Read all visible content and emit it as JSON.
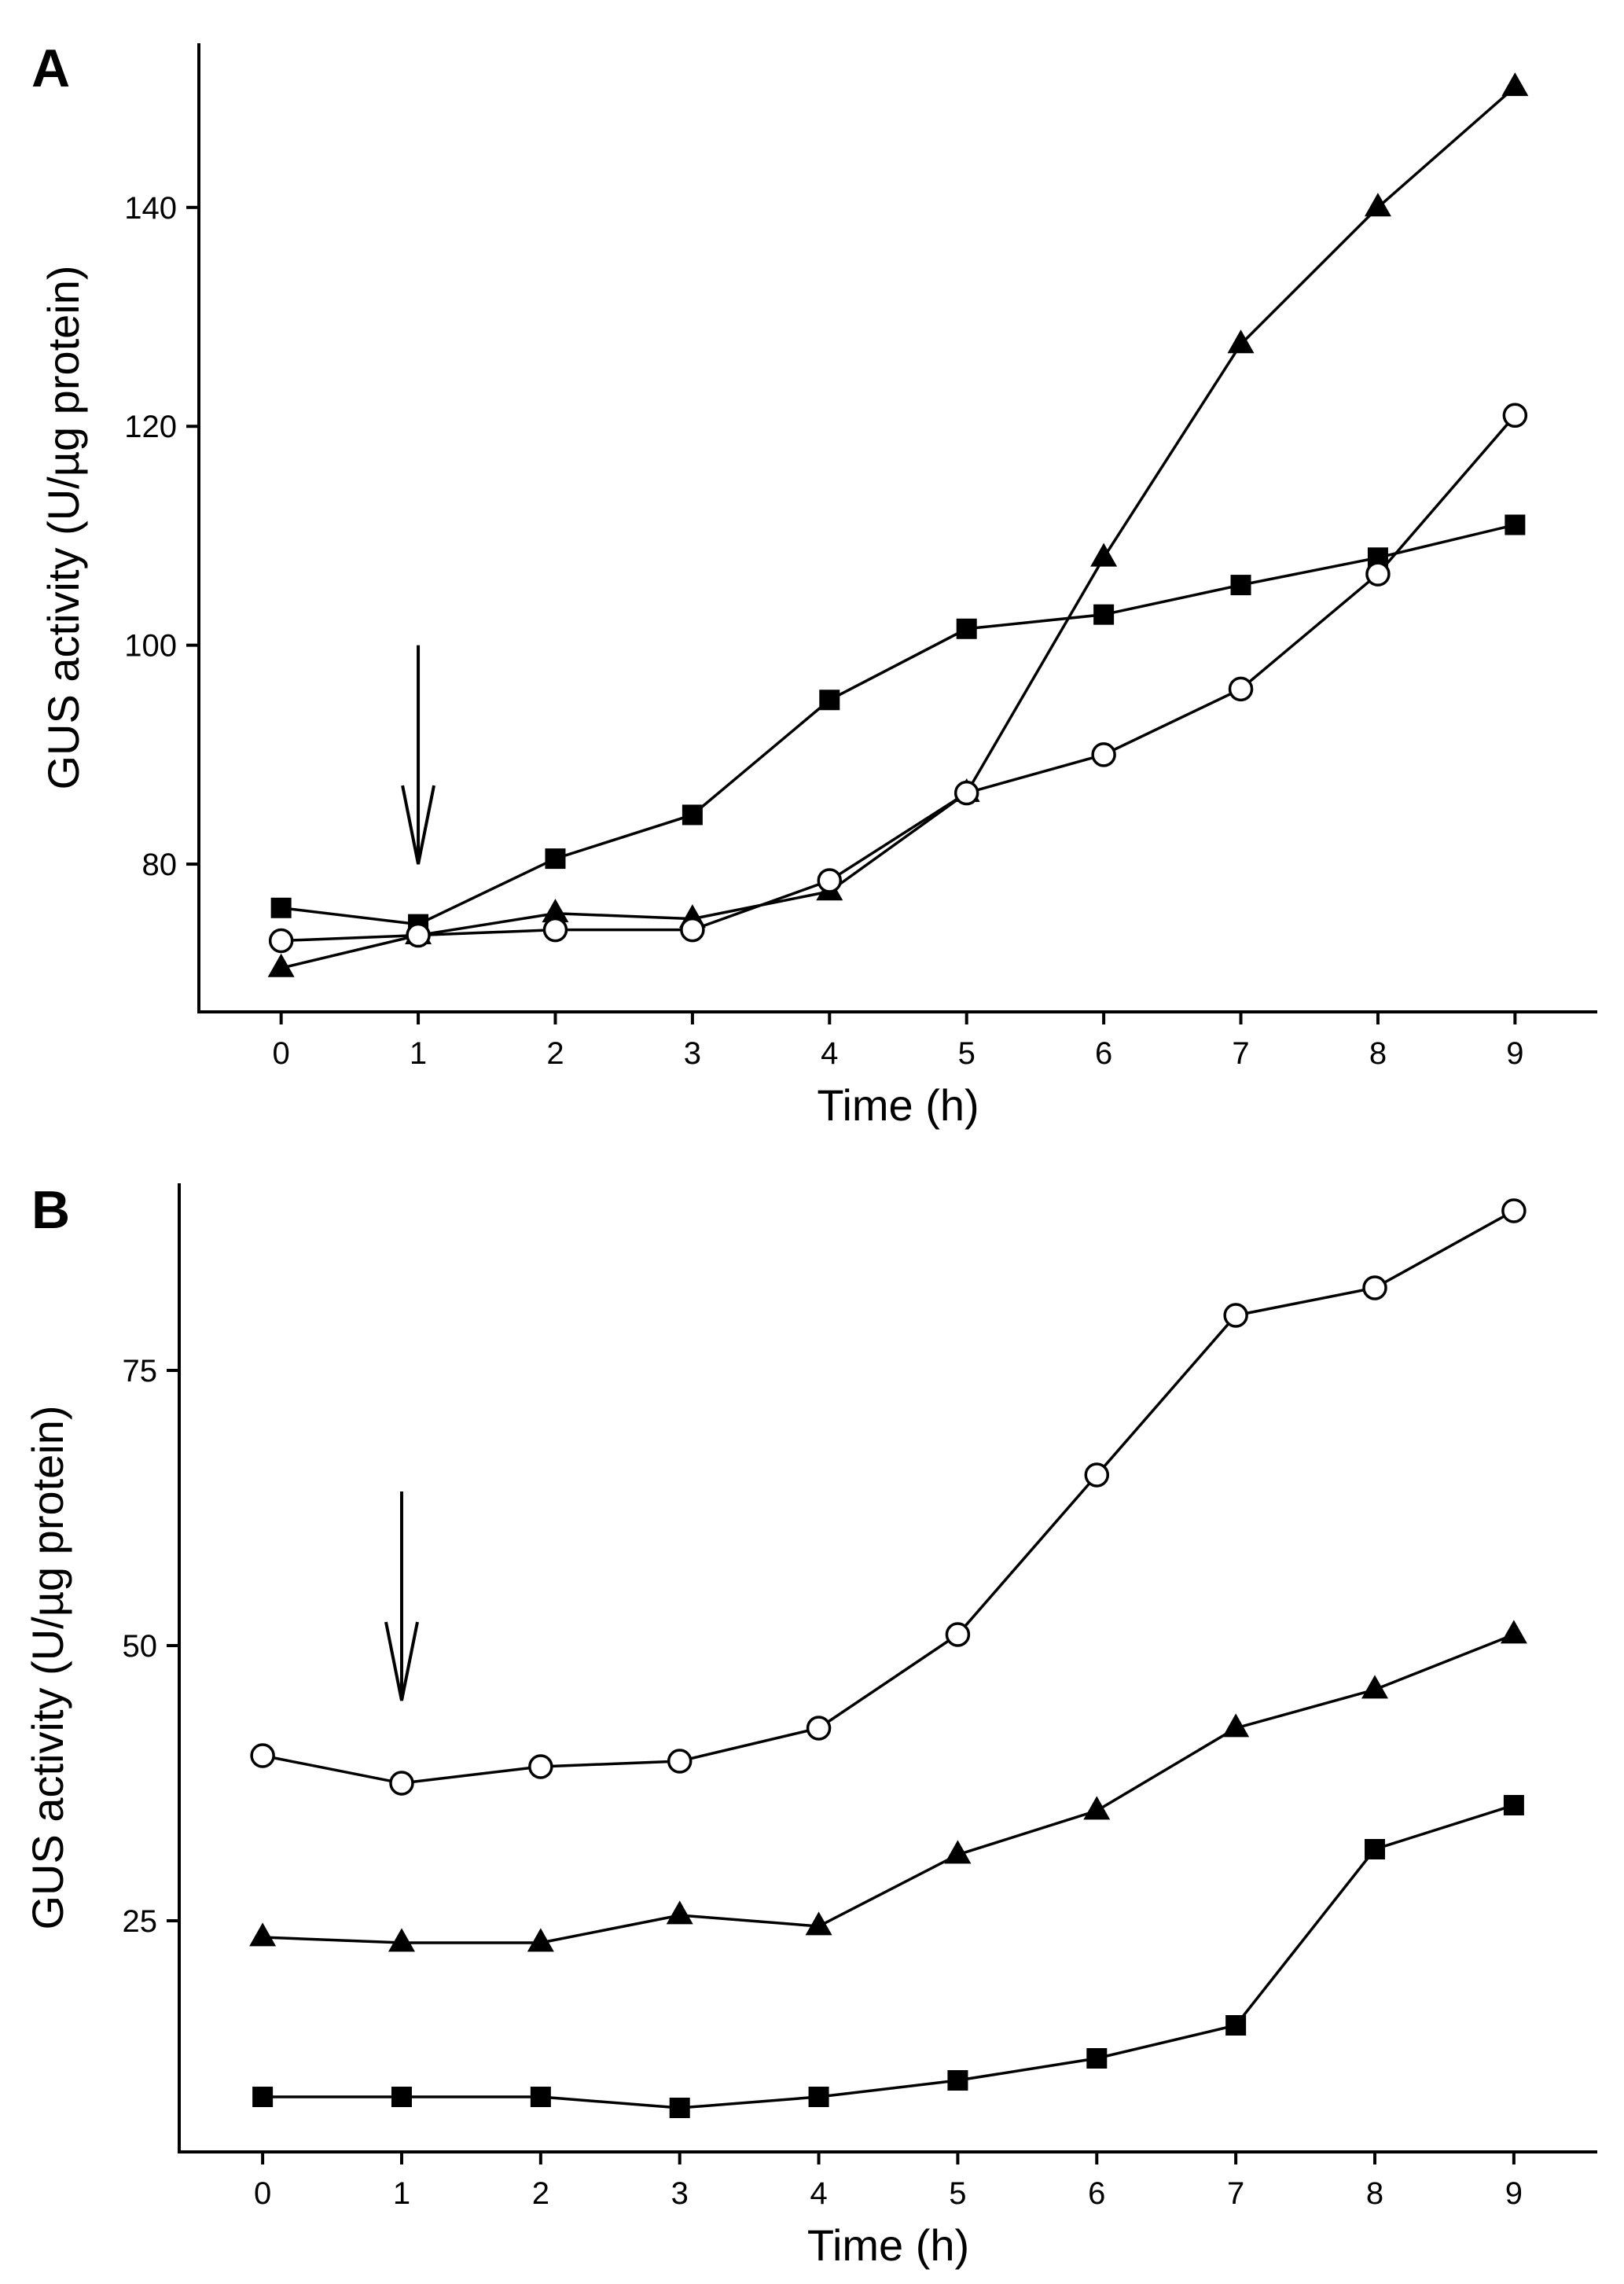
{
  "chart_data": [
    {
      "type": "line",
      "panel_label": "A",
      "xlabel": "Time (h)",
      "ylabel": "GUS activity (U/µg protein)",
      "x": [
        0,
        1,
        2,
        3,
        4,
        5,
        6,
        7,
        8,
        9
      ],
      "xlim": [
        -0.6,
        9.6
      ],
      "ylim": [
        66.5,
        155
      ],
      "yticks": [
        80,
        100,
        120,
        140
      ],
      "grid": false,
      "arrow_at_x": 1,
      "arrow_y_range": [
        80,
        100
      ],
      "series": [
        {
          "name": "filled-square",
          "marker": "square",
          "values": [
            76,
            74.5,
            80.5,
            84.5,
            95,
            101.5,
            102.8,
            105.5,
            108,
            111
          ]
        },
        {
          "name": "filled-triangle",
          "marker": "triangle",
          "values": [
            70.5,
            73.5,
            75.5,
            75,
            77.5,
            86.5,
            108,
            127.5,
            140,
            151
          ]
        },
        {
          "name": "open-circle",
          "marker": "circle",
          "values": [
            73,
            73.5,
            74,
            74,
            78.5,
            86.5,
            90,
            96,
            106.5,
            121
          ]
        }
      ]
    },
    {
      "type": "line",
      "panel_label": "B",
      "xlabel": "Time (h)",
      "ylabel": "GUS activity (U/µg protein)",
      "x": [
        0,
        1,
        2,
        3,
        4,
        5,
        6,
        7,
        8,
        9
      ],
      "xlim": [
        -0.6,
        9.6
      ],
      "ylim": [
        4,
        92
      ],
      "yticks": [
        25,
        50,
        75
      ],
      "grid": false,
      "arrow_at_x": 1,
      "arrow_y_range": [
        45,
        64
      ],
      "series": [
        {
          "name": "open-circle",
          "marker": "circle",
          "values": [
            40,
            37.5,
            39,
            39.5,
            42.5,
            51,
            65.5,
            80,
            82.5,
            89.5
          ]
        },
        {
          "name": "filled-triangle",
          "marker": "triangle",
          "values": [
            23.5,
            23,
            23,
            25.5,
            24.5,
            31,
            35,
            42.5,
            46,
            51
          ]
        },
        {
          "name": "filled-square",
          "marker": "square",
          "values": [
            9,
            9,
            9,
            8,
            9,
            10.5,
            12.5,
            15.5,
            31.5,
            35.5
          ]
        }
      ]
    }
  ]
}
